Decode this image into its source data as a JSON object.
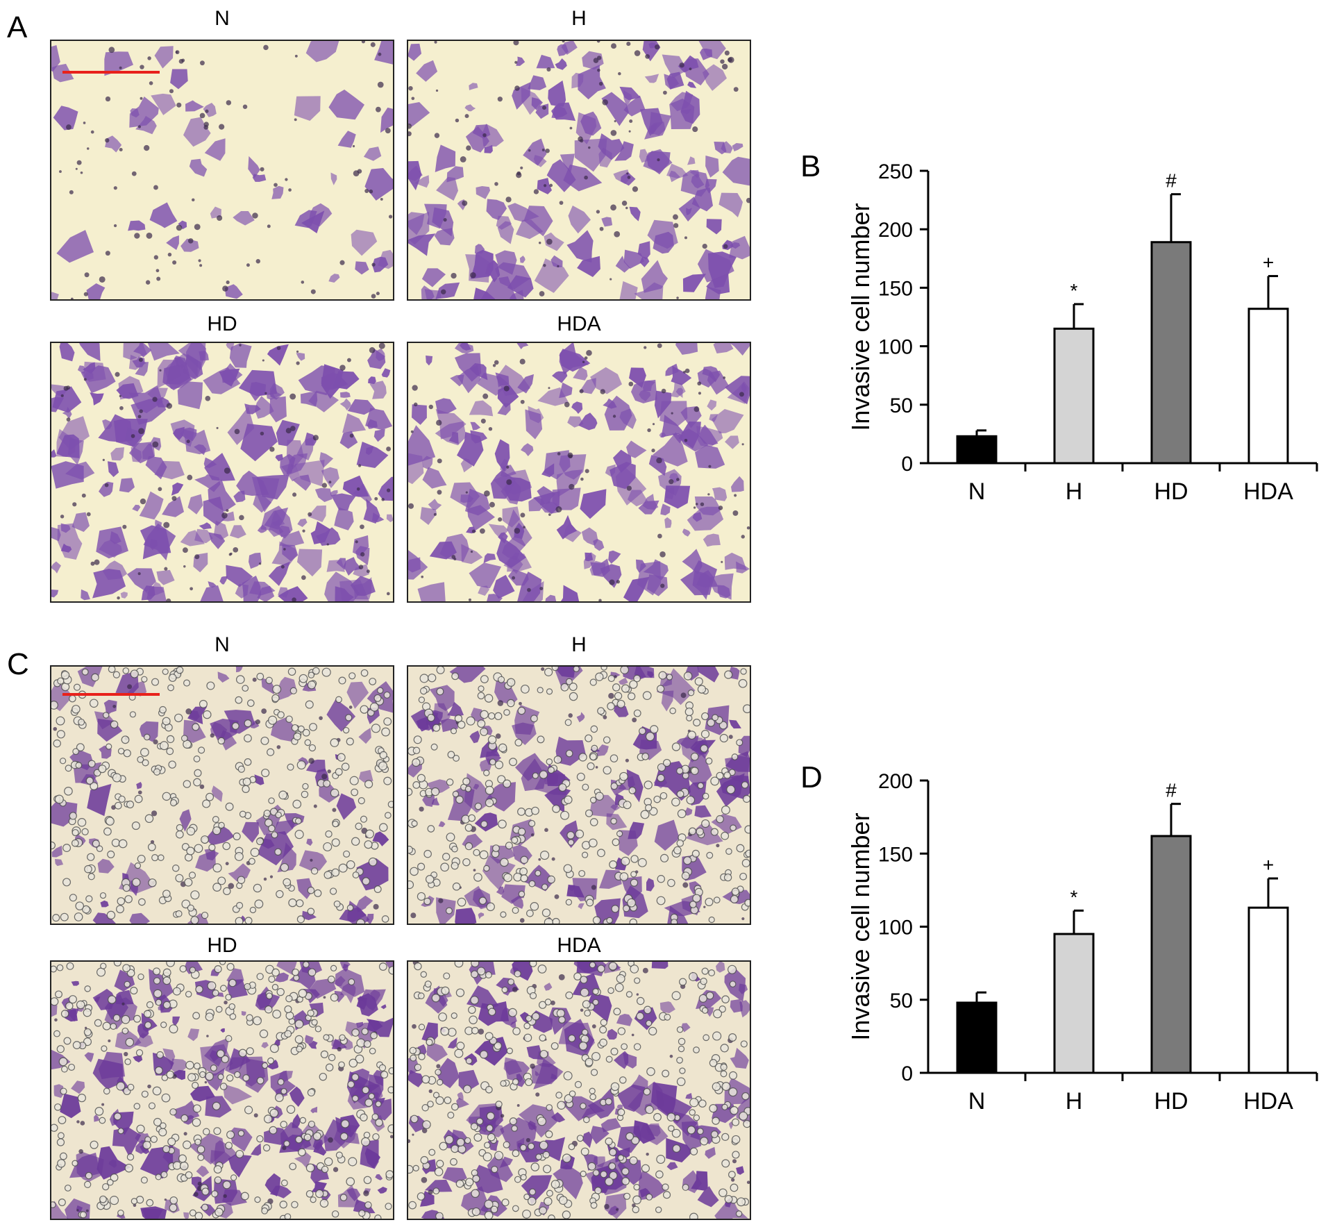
{
  "panels": {
    "A": {
      "letter": "A",
      "images": [
        {
          "label": "N"
        },
        {
          "label": "H"
        },
        {
          "label": "HD"
        },
        {
          "label": "HDA"
        }
      ]
    },
    "C": {
      "letter": "C",
      "images": [
        {
          "label": "N"
        },
        {
          "label": "H"
        },
        {
          "label": "HD"
        },
        {
          "label": "HDA"
        }
      ]
    }
  },
  "colors": {
    "bar_N": "#000000",
    "bar_H": "#d4d4d4",
    "bar_HD": "#7a7a7a",
    "bar_HDA": "#ffffff",
    "scale_bar": "#e8211b",
    "micro_bg_A": "#f5efcf",
    "micro_bg_C": "#eee5cf",
    "cell_A": "#7d4fae",
    "cell_C": "#6c3a9a"
  },
  "chart_data": [
    {
      "panel": "B",
      "type": "bar",
      "categories": [
        "N",
        "H",
        "HD",
        "HDA"
      ],
      "values": [
        23,
        115,
        189,
        132
      ],
      "errors": [
        5,
        21,
        41,
        28
      ],
      "annotations": [
        "",
        "*",
        "#",
        "+"
      ],
      "ylabel": "Invasive cell number",
      "xlabel": "",
      "ylim": [
        0,
        250
      ],
      "yticks": [
        0,
        50,
        100,
        150,
        200,
        250
      ],
      "grid": false,
      "legend": "none"
    },
    {
      "panel": "D",
      "type": "bar",
      "categories": [
        "N",
        "H",
        "HD",
        "HDA"
      ],
      "values": [
        48,
        95,
        162,
        113
      ],
      "errors": [
        7,
        16,
        22,
        20
      ],
      "annotations": [
        "",
        "*",
        "#",
        "+"
      ],
      "ylabel": "Invasive cell number",
      "xlabel": "",
      "ylim": [
        0,
        200
      ],
      "yticks": [
        0,
        50,
        100,
        150,
        200
      ],
      "grid": false,
      "legend": "none"
    }
  ]
}
